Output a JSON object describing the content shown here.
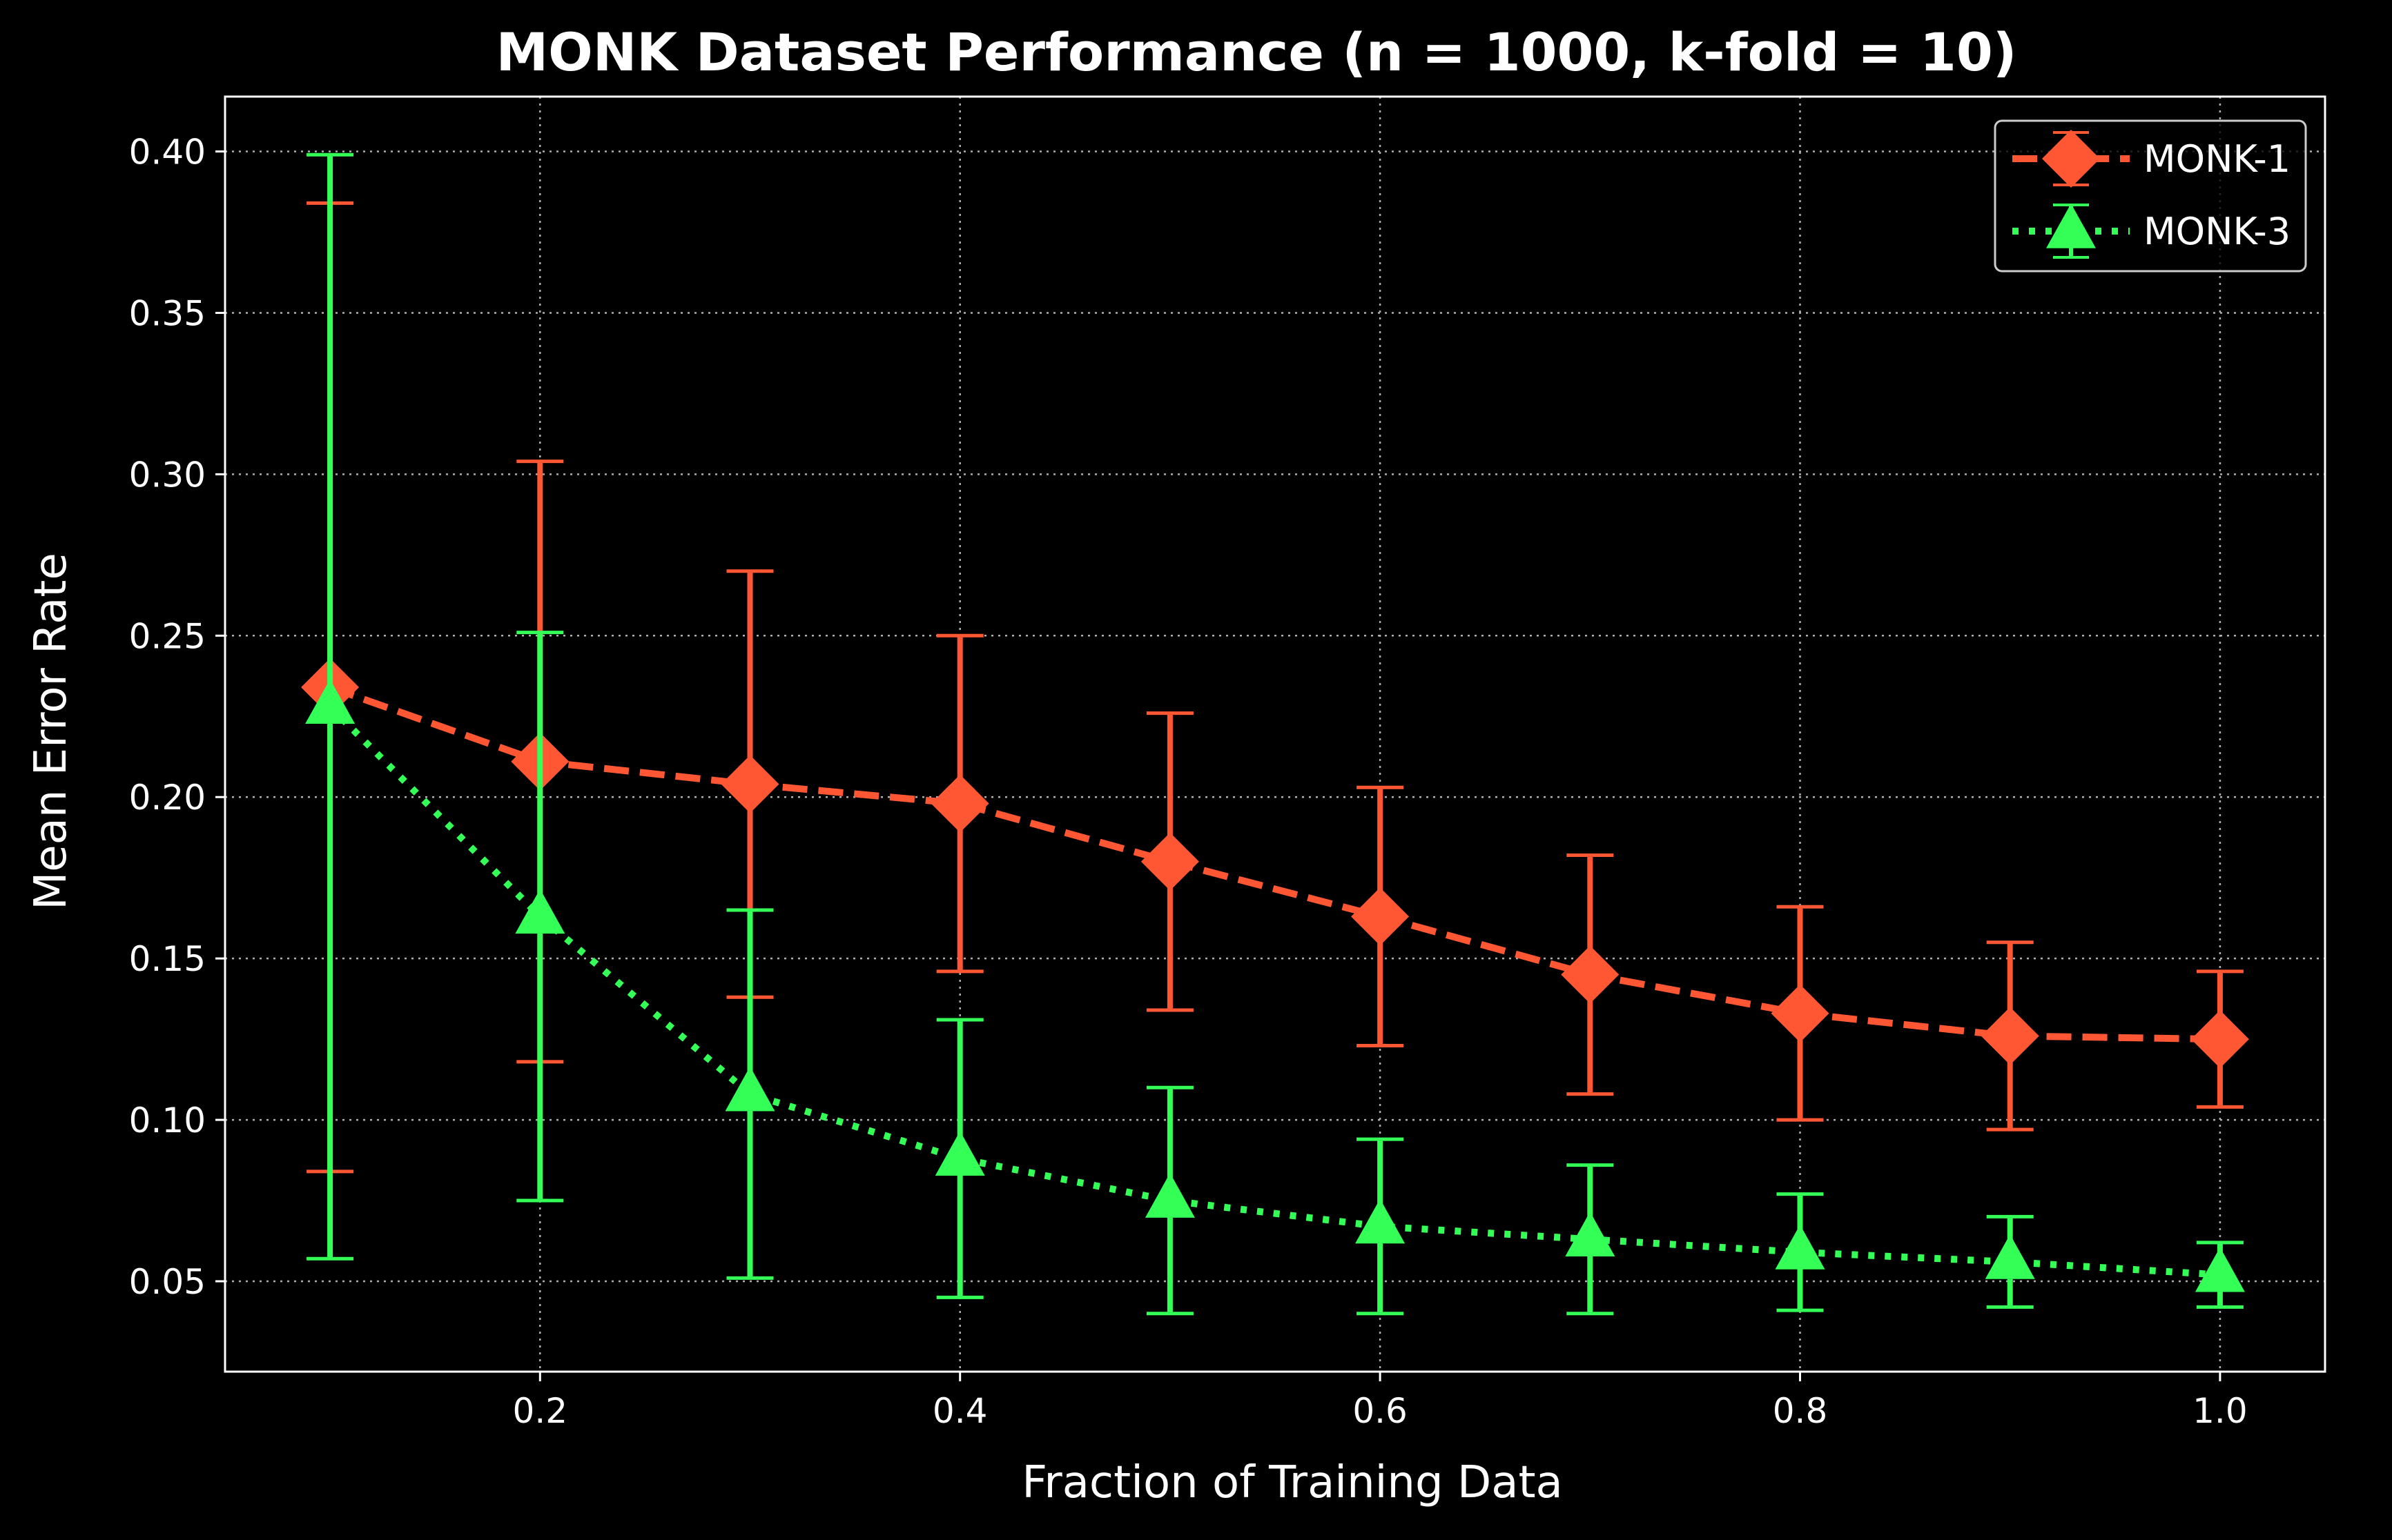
{
  "chart_data": {
    "type": "line",
    "title": "MONK Dataset Performance (n = 1000, k-fold = 10)",
    "xlabel": "Fraction of Training Data",
    "ylabel": "Mean Error Rate",
    "xlim": [
      0.05,
      1.05
    ],
    "ylim": [
      0.022,
      0.417
    ],
    "xticks": [
      0.2,
      0.4,
      0.6,
      0.8,
      1.0
    ],
    "xtick_labels": [
      "0.2",
      "0.4",
      "0.6",
      "0.8",
      "1.0"
    ],
    "yticks": [
      0.05,
      0.1,
      0.15,
      0.2,
      0.25,
      0.3,
      0.35,
      0.4
    ],
    "ytick_labels": [
      "0.05",
      "0.10",
      "0.15",
      "0.20",
      "0.25",
      "0.30",
      "0.35",
      "0.40"
    ],
    "grid": true,
    "legend_position": "top-right",
    "x": [
      0.1,
      0.2,
      0.3,
      0.4,
      0.5,
      0.6,
      0.7,
      0.8,
      0.9,
      1.0
    ],
    "series": [
      {
        "name": "MONK-1",
        "color": "#ff5733",
        "marker": "diamond",
        "line_style": "dashed",
        "values": [
          0.234,
          0.211,
          0.204,
          0.198,
          0.18,
          0.163,
          0.145,
          0.133,
          0.126,
          0.125
        ],
        "error_low": [
          0.084,
          0.118,
          0.138,
          0.146,
          0.134,
          0.123,
          0.108,
          0.1,
          0.097,
          0.104
        ],
        "error_high": [
          0.384,
          0.304,
          0.27,
          0.25,
          0.226,
          0.203,
          0.182,
          0.166,
          0.155,
          0.146
        ]
      },
      {
        "name": "MONK-3",
        "color": "#33ff57",
        "marker": "triangle",
        "line_style": "dotted",
        "values": [
          0.228,
          0.163,
          0.108,
          0.088,
          0.075,
          0.067,
          0.063,
          0.059,
          0.056,
          0.052
        ],
        "error_low": [
          0.057,
          0.075,
          0.051,
          0.045,
          0.04,
          0.04,
          0.04,
          0.041,
          0.042,
          0.042
        ],
        "error_high": [
          0.399,
          0.251,
          0.165,
          0.131,
          0.11,
          0.094,
          0.086,
          0.077,
          0.07,
          0.062
        ]
      }
    ]
  }
}
